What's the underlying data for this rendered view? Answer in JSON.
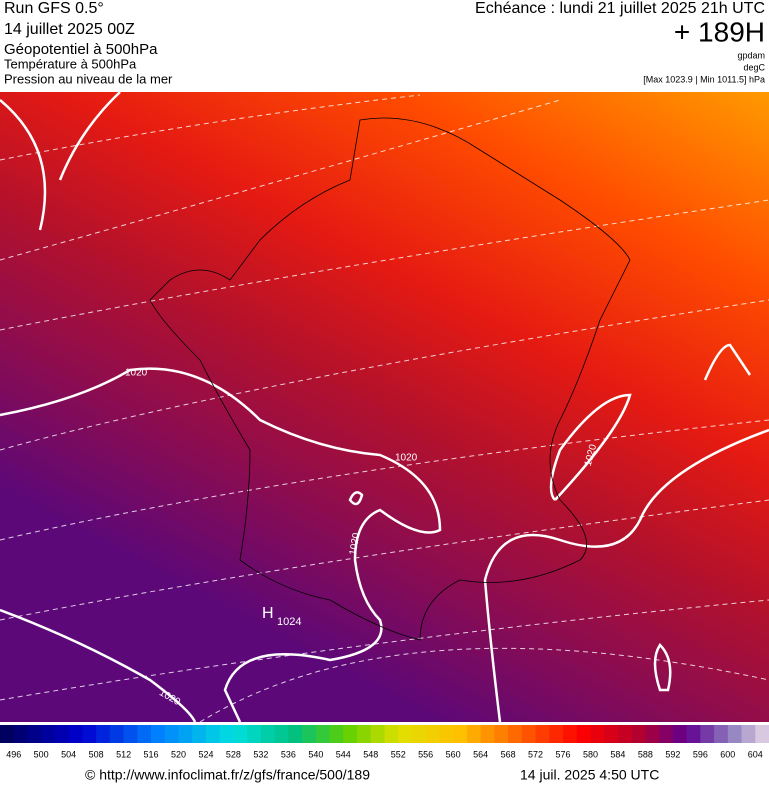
{
  "header": {
    "left": {
      "run": "Run GFS 0.5°",
      "date": "14 juillet 2025 00Z",
      "field": "Géopotentiel à 500hPa",
      "temperature": "Température à 500hPa",
      "pressure": "Pression au niveau de la mer"
    },
    "right": {
      "valid": "Echéance : lundi 21 juillet 2025 21h UTC",
      "lead": "+ 189H",
      "unit_geo": "gpdam",
      "unit_temp": "degC",
      "range": "[Max 1023.9 | Min 1011.5] hPa"
    }
  },
  "map": {
    "isobar_labels": [
      "1020",
      "1020",
      "1020",
      "1020",
      "1020"
    ],
    "high": {
      "symbol": "H",
      "value": "1024"
    }
  },
  "colorbar": {
    "ticks": [
      496,
      500,
      504,
      508,
      512,
      516,
      520,
      524,
      528,
      532,
      536,
      540,
      544,
      548,
      552,
      556,
      560,
      564,
      568,
      572,
      576,
      580,
      584,
      588,
      592,
      596,
      600,
      604
    ]
  },
  "footer": {
    "source": "© http://www.infoclimat.fr/z/gfs/france/500/189",
    "timestamp": "14 juil. 2025  4:50 UTC"
  }
}
